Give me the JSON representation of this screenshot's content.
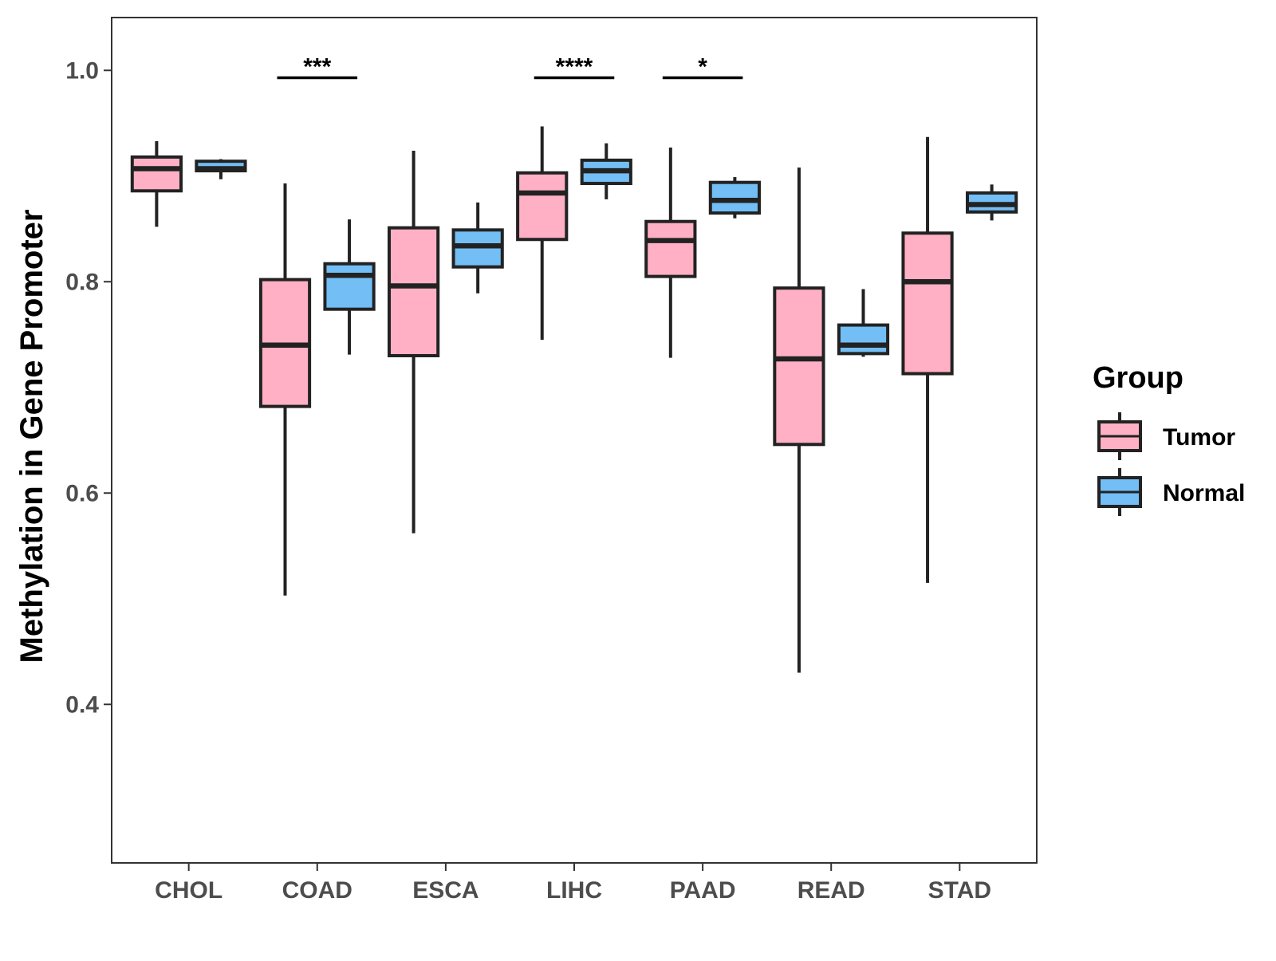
{
  "chart_data": {
    "type": "boxplot",
    "title": "",
    "xlabel": "",
    "ylabel": "Methylation in Gene Promoter",
    "ylim": [
      0.25,
      1.05
    ],
    "yticks": [
      0.4,
      0.6,
      0.8,
      1.0
    ],
    "ytick_labels": [
      "0.4",
      "0.6",
      "0.8",
      "1.0"
    ],
    "categories": [
      "CHOL",
      "COAD",
      "ESCA",
      "LIHC",
      "PAAD",
      "READ",
      "STAD"
    ],
    "grid": false,
    "legend": {
      "title": "Group",
      "position": "right",
      "entries": [
        {
          "name": "Tumor",
          "color": "#FFB0C4"
        },
        {
          "name": "Normal",
          "color": "#72BEF5"
        }
      ]
    },
    "series": [
      {
        "name": "Tumor",
        "color": "#FFB0C4",
        "boxes": [
          {
            "category": "CHOL",
            "whisker_low": 0.852,
            "q1": 0.886,
            "median": 0.907,
            "q3": 0.918,
            "whisker_high": 0.933
          },
          {
            "category": "COAD",
            "whisker_low": 0.503,
            "q1": 0.682,
            "median": 0.74,
            "q3": 0.802,
            "whisker_high": 0.893
          },
          {
            "category": "ESCA",
            "whisker_low": 0.562,
            "q1": 0.73,
            "median": 0.796,
            "q3": 0.851,
            "whisker_high": 0.924
          },
          {
            "category": "LIHC",
            "whisker_low": 0.745,
            "q1": 0.84,
            "median": 0.884,
            "q3": 0.903,
            "whisker_high": 0.947
          },
          {
            "category": "PAAD",
            "whisker_low": 0.728,
            "q1": 0.805,
            "median": 0.839,
            "q3": 0.857,
            "whisker_high": 0.927
          },
          {
            "category": "READ",
            "whisker_low": 0.43,
            "q1": 0.646,
            "median": 0.727,
            "q3": 0.794,
            "whisker_high": 0.908
          },
          {
            "category": "STAD",
            "whisker_low": 0.515,
            "q1": 0.713,
            "median": 0.8,
            "q3": 0.846,
            "whisker_high": 0.937
          }
        ]
      },
      {
        "name": "Normal",
        "color": "#72BEF5",
        "boxes": [
          {
            "category": "CHOL",
            "whisker_low": 0.897,
            "q1": 0.905,
            "median": 0.907,
            "q3": 0.914,
            "whisker_high": 0.916
          },
          {
            "category": "COAD",
            "whisker_low": 0.731,
            "q1": 0.774,
            "median": 0.806,
            "q3": 0.817,
            "whisker_high": 0.859
          },
          {
            "category": "ESCA",
            "whisker_low": 0.789,
            "q1": 0.814,
            "median": 0.834,
            "q3": 0.849,
            "whisker_high": 0.875
          },
          {
            "category": "LIHC",
            "whisker_low": 0.878,
            "q1": 0.893,
            "median": 0.905,
            "q3": 0.915,
            "whisker_high": 0.931
          },
          {
            "category": "PAAD",
            "whisker_low": 0.86,
            "q1": 0.865,
            "median": 0.877,
            "q3": 0.894,
            "whisker_high": 0.899
          },
          {
            "category": "READ",
            "whisker_low": 0.729,
            "q1": 0.732,
            "median": 0.74,
            "q3": 0.759,
            "whisker_high": 0.793
          },
          {
            "category": "STAD",
            "whisker_low": 0.858,
            "q1": 0.866,
            "median": 0.873,
            "q3": 0.884,
            "whisker_high": 0.892
          }
        ]
      }
    ],
    "annotations": [
      {
        "category": "COAD",
        "label": "***",
        "y": 0.993
      },
      {
        "category": "LIHC",
        "label": "****",
        "y": 0.993
      },
      {
        "category": "PAAD",
        "label": "*",
        "y": 0.993
      }
    ]
  }
}
